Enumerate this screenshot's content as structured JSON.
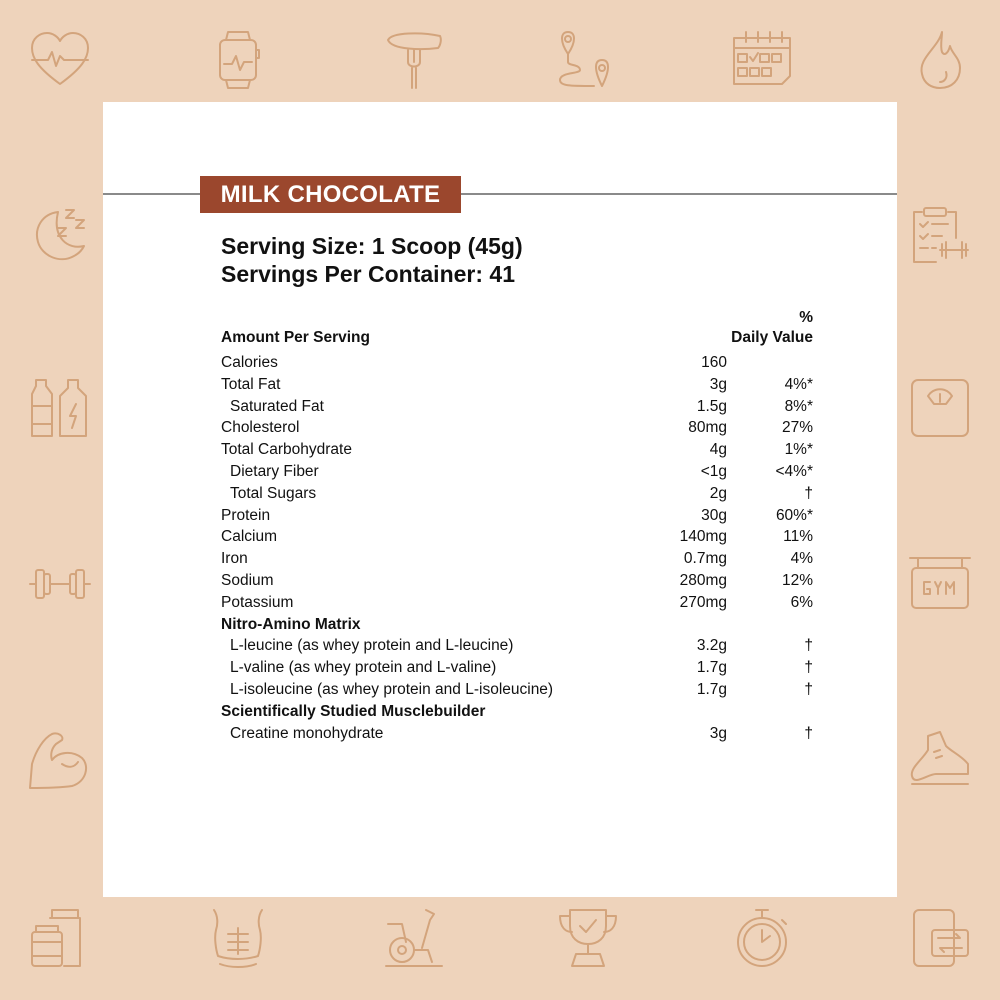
{
  "flavor": "MILK CHOCOLATE",
  "serving_size": "Serving Size: 1 Scoop (45g)",
  "servings_per_container": "Servings Per Container: 41",
  "header": {
    "amount": "Amount Per Serving",
    "dv_line1": "%",
    "dv_line2": "Daily Value"
  },
  "rows": [
    {
      "name": "Calories",
      "amount": "160",
      "dv": ""
    },
    {
      "name": "Total Fat",
      "amount": "3g",
      "dv": "4%*"
    },
    {
      "name": "Saturated Fat",
      "amount": "1.5g",
      "dv": "8%*"
    },
    {
      "name": "Cholesterol",
      "amount": "80mg",
      "dv": "27%"
    },
    {
      "name": "Total Carbohydrate",
      "amount": "4g",
      "dv": "1%*"
    },
    {
      "name": "Dietary Fiber",
      "amount": "<1g",
      "dv": "<4%*"
    },
    {
      "name": "Total Sugars",
      "amount": "2g",
      "dv": "†"
    },
    {
      "name": "Protein",
      "amount": "30g",
      "dv": "60%*"
    },
    {
      "name": "Calcium",
      "amount": "140mg",
      "dv": "11%"
    },
    {
      "name": "Iron",
      "amount": "0.7mg",
      "dv": "4%"
    },
    {
      "name": "Sodium",
      "amount": "280mg",
      "dv": "12%"
    },
    {
      "name": "Potassium",
      "amount": "270mg",
      "dv": "6%"
    },
    {
      "name": "Nitro-Amino Matrix",
      "amount": "",
      "dv": ""
    },
    {
      "name": "L-leucine (as whey protein and L-leucine)",
      "amount": "3.2g",
      "dv": "†"
    },
    {
      "name": "L-valine (as whey protein and L-valine)",
      "amount": "1.7g",
      "dv": "†"
    },
    {
      "name": "L-isoleucine (as whey protein and L-isoleucine)",
      "amount": "1.7g",
      "dv": "†"
    },
    {
      "name": "Scientifically Studied Musclebuilder",
      "amount": "",
      "dv": ""
    },
    {
      "name": "Creatine monohydrate",
      "amount": "3g",
      "dv": "†"
    }
  ],
  "colors": {
    "background": "#eed3bb",
    "icon_stroke": "#d3a47c",
    "flavor_banner": "#9b472d"
  },
  "icons": [
    "heart-rate-icon",
    "smartwatch-icon",
    "carrot-fork-icon",
    "route-icon",
    "calendar-icon",
    "flame-icon",
    "sleep-moon-icon",
    "workout-plan-icon",
    "water-bottles-icon",
    "scale-icon",
    "dumbbell-icon",
    "gym-sign-icon",
    "flexed-arm-icon",
    "running-shoe-icon",
    "supplement-jars-icon",
    "abs-torso-icon",
    "exercise-bike-icon",
    "trophy-icon",
    "stopwatch-icon",
    "phone-sync-icon"
  ]
}
